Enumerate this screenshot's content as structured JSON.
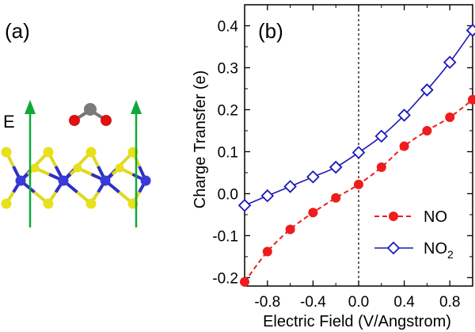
{
  "panel_a": {
    "label": "(a)",
    "field_label": "E"
  },
  "colors": {
    "no_series": "#ee1c1c",
    "no2_series": "#1a1ab8",
    "sulfur": "#e8e01c",
    "metal": "#3a3ad8",
    "bond_yellow": "#e0d820",
    "bond_blue": "#3030c0",
    "field_arrow": "#10a83a",
    "carbon": "#7a7a7a",
    "oxygen": "#dd1111",
    "axis": "#000000"
  },
  "chart_data": {
    "type": "line",
    "panel_label": "(b)",
    "xlabel": "Electric Field (V/Angstrom)",
    "ylabel": "Charge Transfer (e)",
    "xlim": [
      -1.0,
      1.0
    ],
    "ylim": [
      -0.22,
      0.45
    ],
    "xticks": [
      -0.8,
      -0.4,
      0.0,
      0.4,
      0.8
    ],
    "xtick_labels": [
      "-0.8",
      "-0.4",
      "0.0",
      "0.4",
      "0.8"
    ],
    "yticks": [
      -0.2,
      -0.1,
      0.0,
      0.1,
      0.2,
      0.3,
      0.4
    ],
    "ytick_labels": [
      "-0.2",
      "-0.1",
      "0.0",
      "0.1",
      "0.2",
      "0.3",
      "0.4"
    ],
    "reference_line_x": 0.0,
    "legend_position": "bottom-right",
    "x": [
      -1.0,
      -0.8,
      -0.6,
      -0.4,
      -0.2,
      0.0,
      0.2,
      0.4,
      0.6,
      0.8,
      1.0
    ],
    "series": [
      {
        "name": "NO",
        "legend_label": "NO",
        "marker": "circle",
        "line": "dashed",
        "values": [
          -0.21,
          -0.138,
          -0.085,
          -0.045,
          -0.01,
          0.022,
          0.063,
          0.113,
          0.15,
          0.182,
          0.224
        ]
      },
      {
        "name": "NO2",
        "legend_label": "NO",
        "legend_subscript": "2",
        "marker": "diamond-open",
        "line": "solid",
        "values": [
          -0.028,
          -0.005,
          0.017,
          0.04,
          0.063,
          0.098,
          0.137,
          0.187,
          0.247,
          0.313,
          0.389
        ]
      }
    ]
  }
}
